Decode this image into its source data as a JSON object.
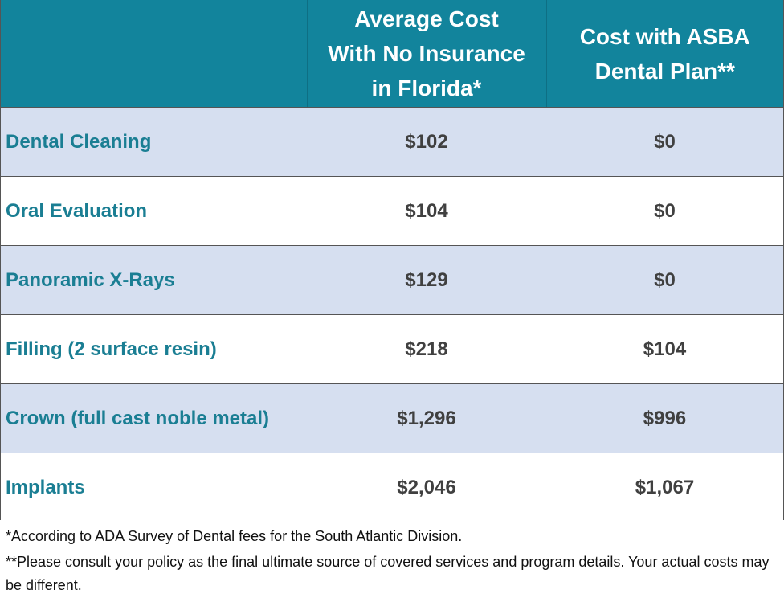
{
  "table": {
    "headers": [
      {
        "lines": []
      },
      {
        "lines": [
          "Average Cost",
          "With No Insurance",
          "in Florida*"
        ]
      },
      {
        "lines": [
          "Cost with ASBA",
          "Dental Plan**"
        ]
      }
    ],
    "rows": [
      {
        "service": "Dental Cleaning",
        "no_insurance": "$102",
        "asba_plan": "$0"
      },
      {
        "service": "Oral Evaluation",
        "no_insurance": "$104",
        "asba_plan": "$0"
      },
      {
        "service": "Panoramic X-Rays",
        "no_insurance": "$129",
        "asba_plan": "$0"
      },
      {
        "service": "Filling (2 surface resin)",
        "no_insurance": "$218",
        "asba_plan": "$104"
      },
      {
        "service": "Crown (full cast noble metal)",
        "no_insurance": "$1,296",
        "asba_plan": "$996"
      },
      {
        "service": "Implants",
        "no_insurance": "$2,046",
        "asba_plan": "$1,067"
      }
    ]
  },
  "footnotes": {
    "note1": "*According to ADA Survey of Dental fees for the South Atlantic Division.",
    "note2": "**Please consult your policy as the final ultimate source of covered services and program details. Your actual costs may be different."
  },
  "colors": {
    "header_bg": "#12849c",
    "header_text": "#ffffff",
    "row_shaded": "#d6dff0",
    "label_text": "#1a7e93",
    "value_text": "#404040"
  }
}
